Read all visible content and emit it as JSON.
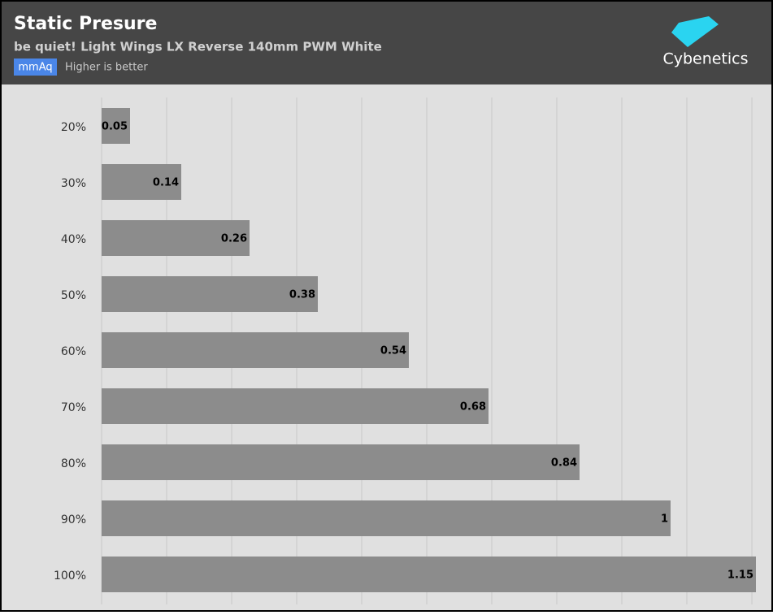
{
  "chart_data": {
    "type": "bar",
    "orientation": "horizontal",
    "title": "Static Presure",
    "subtitle": "be quiet! Light Wings LX Reverse 140mm PWM White",
    "unit": "mmAq",
    "note": "Higher is better",
    "logo": "Cybenetics",
    "categories": [
      "20%",
      "30%",
      "40%",
      "50%",
      "60%",
      "70%",
      "80%",
      "90%",
      "100%"
    ],
    "values": [
      0.05,
      0.14,
      0.26,
      0.38,
      0.54,
      0.68,
      0.84,
      1,
      1.15
    ],
    "color": "#8c8c8c",
    "xlim": [
      0,
      1.15
    ],
    "xticks": [
      0,
      0.1143,
      0.2286,
      0.3429,
      0.4571,
      0.5714,
      0.6857,
      0.8,
      0.9143,
      1.0286,
      1.1429
    ],
    "grid": true
  }
}
